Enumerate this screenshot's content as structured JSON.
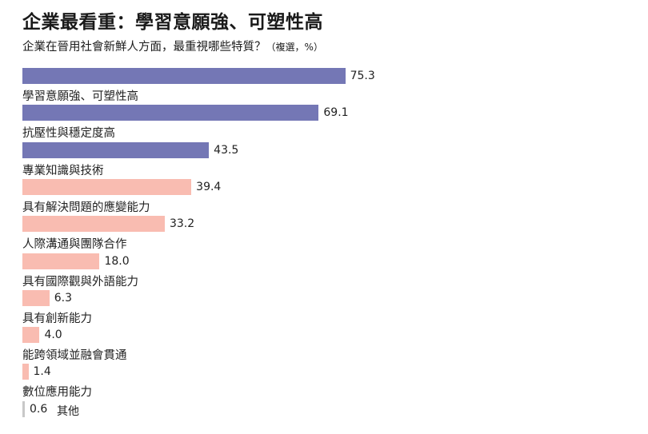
{
  "chart_data": {
    "type": "bar",
    "orientation": "horizontal",
    "title": "企業最看重：學習意願強、可塑性高",
    "subtitle": "企業在晉用社會新鮮人方面，最重視哪些特質？",
    "subtitle_note": "（複選，%）",
    "categories": [
      "學習意願強、可塑性高",
      "抗壓性與穩定度高",
      "專業知識與技術",
      "具有解決問題的應變能力",
      "人際溝通與團隊合作",
      "具有國際觀與外語能力",
      "具有創新能力",
      "能跨領域並融會貫通",
      "數位應用能力",
      "其他"
    ],
    "values": [
      75.3,
      69.1,
      43.5,
      39.4,
      33.2,
      18.0,
      6.3,
      4.0,
      1.4,
      0.6
    ],
    "value_labels": [
      "75.3",
      "69.1",
      "43.5",
      "39.4",
      "33.2",
      "18.0",
      "6.3",
      "4.0",
      "1.4",
      "0.6"
    ],
    "colors": [
      "#7477b5",
      "#7477b5",
      "#7477b5",
      "#f9bcb1",
      "#f9bcb1",
      "#f9bcb1",
      "#f9bcb1",
      "#f9bcb1",
      "#f9bcb1",
      "#c8c8c8"
    ],
    "xlim": [
      0,
      100
    ],
    "grid": false,
    "legend": "none"
  }
}
